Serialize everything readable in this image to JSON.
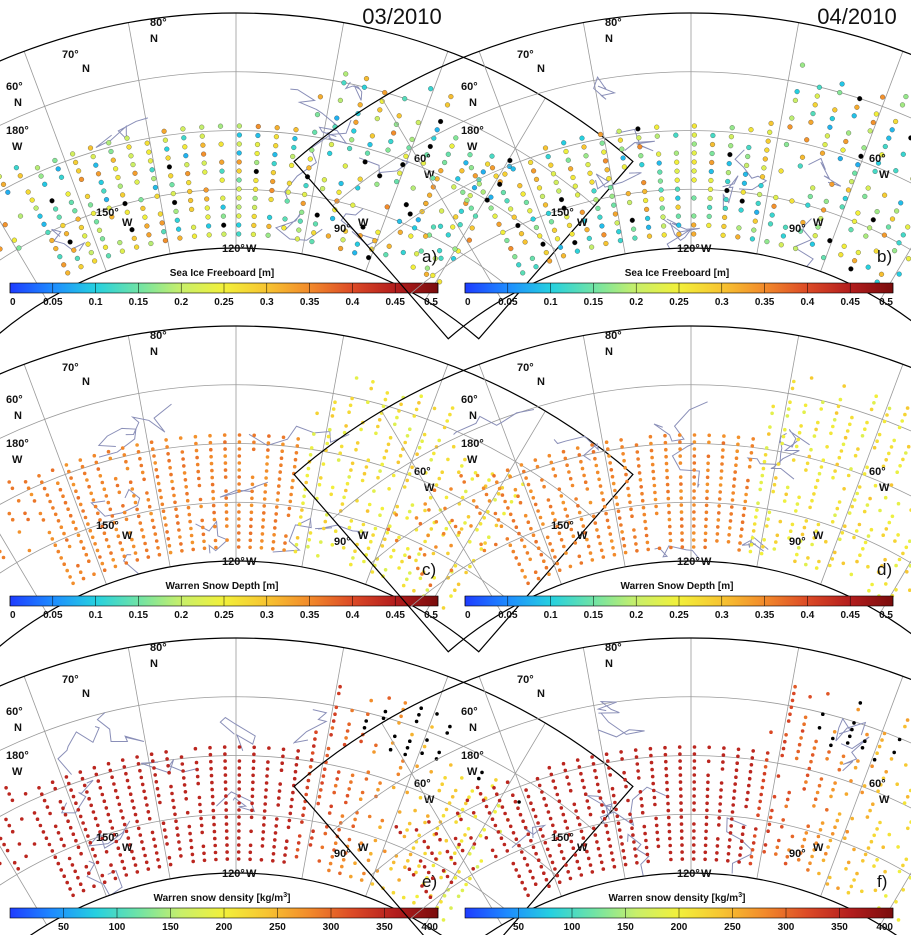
{
  "figure": {
    "dates": [
      "03/2010",
      "04/2010"
    ],
    "graticule_labels": {
      "lat_80": "80",
      "lat_70": "70",
      "lat_60": "60",
      "north": "N",
      "lon_180": "180",
      "lon_150": "150",
      "lon_120": "120",
      "lon_90": "90",
      "lon_60": "60",
      "west": "W"
    },
    "rows": [
      {
        "variable": "Sea Ice Freeboard [m]",
        "tick_labels": [
          "0",
          "0.05",
          "0.1",
          "0.15",
          "0.2",
          "0.25",
          "0.3",
          "0.35",
          "0.4",
          "0.45",
          "0.5"
        ],
        "range": [
          0,
          0.5
        ],
        "panels": [
          {
            "letter": "a)"
          },
          {
            "letter": "b)"
          }
        ]
      },
      {
        "variable": "Warren Snow Depth [m]",
        "tick_labels": [
          "0",
          "0.05",
          "0.1",
          "0.15",
          "0.2",
          "0.25",
          "0.3",
          "0.35",
          "0.4",
          "0.45",
          "0.5"
        ],
        "range": [
          0,
          0.5
        ],
        "panels": [
          {
            "letter": "c)"
          },
          {
            "letter": "d)"
          }
        ]
      },
      {
        "variable": "Warren snow density [kg/m",
        "variable_sup": "3",
        "variable_end": "]",
        "tick_labels": [
          "50",
          "100",
          "150",
          "200",
          "250",
          "300",
          "350",
          "400"
        ],
        "range": [
          0,
          400
        ],
        "panels": [
          {
            "letter": "e)"
          },
          {
            "letter": "f)"
          }
        ]
      }
    ],
    "colormap": [
      "#1e3cff",
      "#1e8cff",
      "#25d0e0",
      "#6fe3a6",
      "#c8ef6a",
      "#f2f03a",
      "#f7c431",
      "#f28a2b",
      "#dc4a26",
      "#b31d1d",
      "#7a0c0c"
    ],
    "no_data_color": "#000000"
  }
}
